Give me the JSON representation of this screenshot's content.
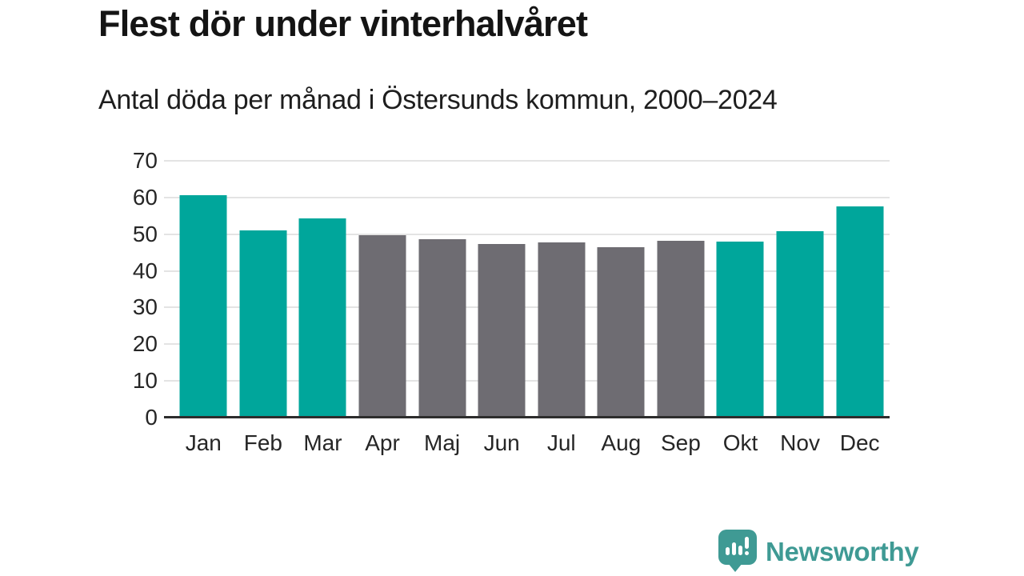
{
  "header": {
    "title": "Flest dör under vinterhalvåret",
    "subtitle": "Antal döda per månad i Östersunds kommun, 2000–2024"
  },
  "chart_data": {
    "type": "bar",
    "title": "Flest dör under vinterhalvåret",
    "subtitle": "Antal döda per månad i Östersunds kommun, 2000–2024",
    "categories": [
      "Jan",
      "Feb",
      "Mar",
      "Apr",
      "Maj",
      "Jun",
      "Jul",
      "Aug",
      "Sep",
      "Okt",
      "Nov",
      "Dec"
    ],
    "values": [
      60.6,
      51.0,
      54.4,
      49.7,
      48.7,
      47.3,
      47.7,
      46.5,
      48.1,
      48.0,
      50.8,
      57.6
    ],
    "bar_color_keys": [
      "teal",
      "teal",
      "teal",
      "gray",
      "gray",
      "gray",
      "gray",
      "gray",
      "gray",
      "teal",
      "teal",
      "teal"
    ],
    "colors": {
      "teal": "#00a69b",
      "gray": "#6e6c72"
    },
    "xlabel": "",
    "ylabel": "",
    "ylim": [
      0,
      70
    ],
    "yticks": [
      0,
      10,
      20,
      30,
      40,
      50,
      60,
      70
    ],
    "grid": true,
    "gridline_color": "#e4e4e4",
    "axis_color": "#2d2d2d",
    "legend": false
  },
  "footer": {
    "brand": "Newsworthy",
    "logo_color": "#3f9a94"
  }
}
